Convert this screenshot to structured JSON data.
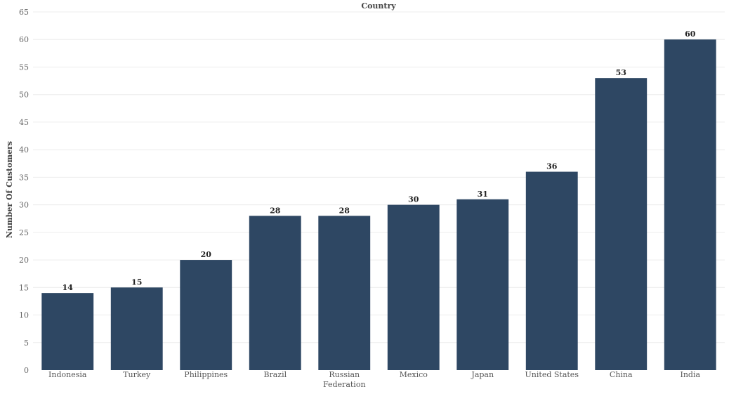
{
  "chart_data": {
    "type": "bar",
    "title": "Country",
    "xlabel": "",
    "ylabel": "Number Of Customers",
    "categories": [
      "Indonesia",
      "Turkey",
      "Philippines",
      "Brazil",
      "Russian Federation",
      "Mexico",
      "Japan",
      "United States",
      "China",
      "India"
    ],
    "category_lines": [
      [
        "Indonesia"
      ],
      [
        "Turkey"
      ],
      [
        "Philippines"
      ],
      [
        "Brazil"
      ],
      [
        "Russian",
        "Federation"
      ],
      [
        "Mexico"
      ],
      [
        "Japan"
      ],
      [
        "United States"
      ],
      [
        "China"
      ],
      [
        "India"
      ]
    ],
    "values": [
      14,
      15,
      20,
      28,
      28,
      30,
      31,
      36,
      53,
      60
    ],
    "ylim": [
      0,
      65
    ],
    "yticks": [
      0,
      5,
      10,
      15,
      20,
      25,
      30,
      35,
      40,
      45,
      50,
      55,
      60,
      65
    ],
    "grid": true,
    "legend": "none",
    "bar_color": "#2e4763"
  }
}
